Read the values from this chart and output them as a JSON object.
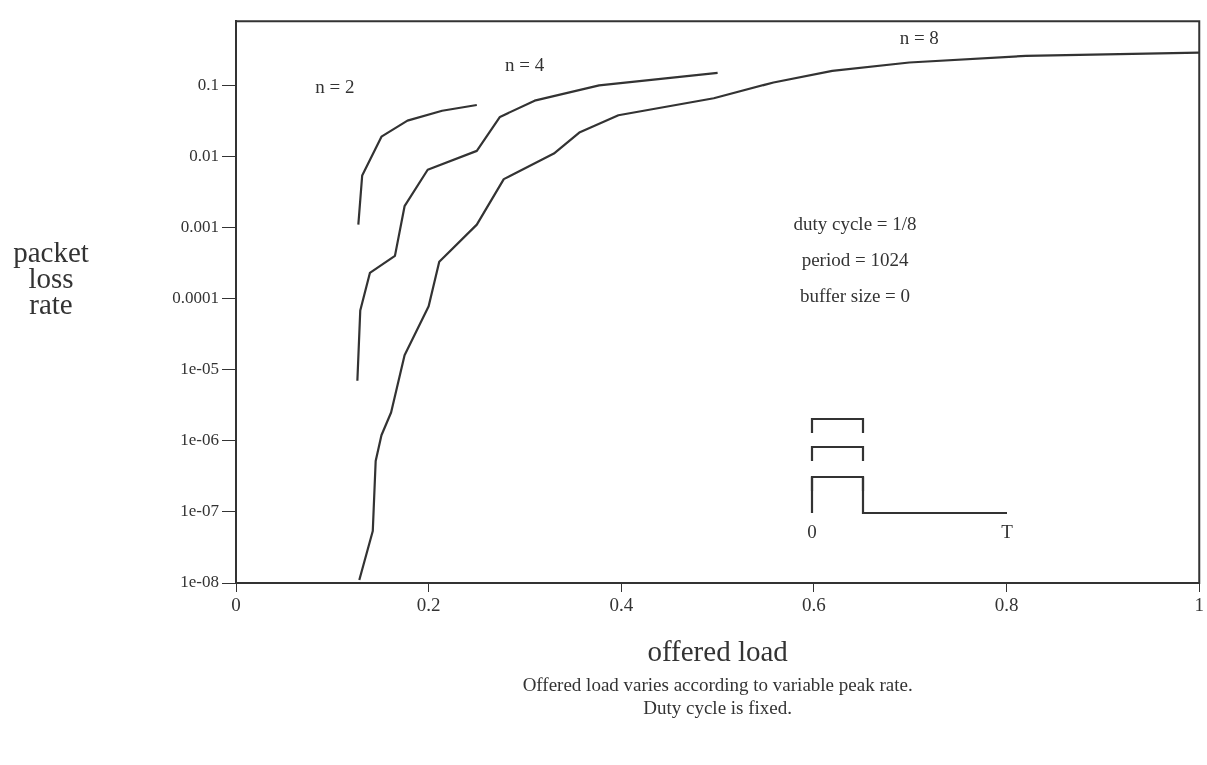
{
  "chart_data": {
    "type": "line",
    "xlabel": "offered load",
    "ylabel": "packet loss rate",
    "log": true,
    "legend": false,
    "marker": "none",
    "line_style": "solid",
    "xlim": [
      0,
      1
    ],
    "xticks": [
      0,
      0.2,
      0.4,
      0.6,
      0.8,
      1
    ],
    "ylim": [
      1e-08,
      0.8
    ],
    "yticks": [
      {
        "value": 1e-08,
        "label": "1e-08"
      },
      {
        "value": 1e-07,
        "label": "1e-07"
      },
      {
        "value": 1e-06,
        "label": "1e-06"
      },
      {
        "value": 1e-05,
        "label": "1e-05"
      },
      {
        "value": 0.0001,
        "label": "0.0001"
      },
      {
        "value": 0.001,
        "label": "0.001"
      },
      {
        "value": 0.01,
        "label": "0.01"
      },
      {
        "value": 0.1,
        "label": "0.1"
      }
    ],
    "series": [
      {
        "name": "n = 2",
        "color": "#333333",
        "x": [
          0.127,
          0.131,
          0.151,
          0.178,
          0.214,
          0.25
        ],
        "values": [
          0.0011,
          0.0054,
          0.019,
          0.032,
          0.044,
          0.053
        ]
      },
      {
        "name": "n = 4",
        "color": "#333333",
        "x": [
          0.126,
          0.129,
          0.139,
          0.165,
          0.175,
          0.199,
          0.25,
          0.274,
          0.31,
          0.377,
          0.5
        ],
        "values": [
          7e-06,
          6.8e-05,
          0.00023,
          0.0004,
          0.002,
          0.0065,
          0.012,
          0.036,
          0.061,
          0.1,
          0.15
        ]
      },
      {
        "name": "n = 8",
        "color": "#333333",
        "x": [
          0.128,
          0.142,
          0.145,
          0.151,
          0.161,
          0.175,
          0.2,
          0.211,
          0.25,
          0.278,
          0.33,
          0.357,
          0.397,
          0.496,
          0.558,
          0.619,
          0.699,
          0.82,
          1.0
        ],
        "values": [
          1.1e-08,
          5.4e-08,
          5.2e-07,
          1.2e-06,
          2.5e-06,
          1.6e-05,
          7.8e-05,
          0.00033,
          0.0011,
          0.0048,
          0.011,
          0.022,
          0.038,
          0.066,
          0.11,
          0.16,
          0.21,
          0.26,
          0.29
        ]
      }
    ],
    "annotations": [
      "duty cycle = 1/8",
      "period = 1024",
      "buffer size = 0",
      "0",
      "T",
      "Offered load varies according to variable peak rate.",
      "Duty cycle is fixed."
    ]
  }
}
